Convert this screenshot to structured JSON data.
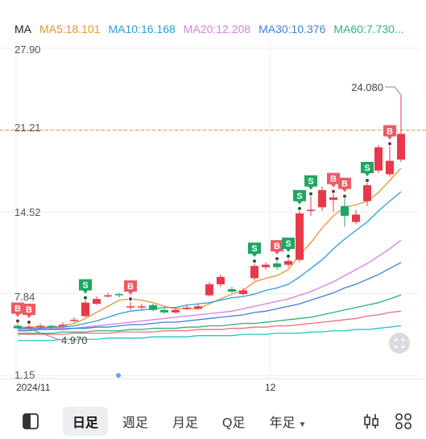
{
  "legend": {
    "ma": {
      "label": "MA",
      "color": "#222222"
    },
    "ma5": {
      "label": "MA5:18.101",
      "color": "#e8922e"
    },
    "ma10": {
      "label": "MA10:16.168",
      "color": "#2a9fd6"
    },
    "ma20": {
      "label": "MA20:12.208",
      "color": "#d67ee0"
    },
    "ma30": {
      "label": "MA30:10.376",
      "color": "#3f7fd8"
    },
    "ma60": {
      "label": "MA60:7.730...",
      "color": "#2bb27a"
    }
  },
  "y_axis": [
    "27.90",
    "21.21",
    "14.52",
    "7.84",
    "1.15"
  ],
  "x_axis": [
    "2024/11",
    "12"
  ],
  "annotations": {
    "high_label": "24.080",
    "low_label": "4.970",
    "ref_line_value": "21.21"
  },
  "markers": {
    "buy": "B",
    "sell": "S"
  },
  "toolbar": {
    "tabs": [
      "日足",
      "週足",
      "月足",
      "Q足",
      "年足"
    ],
    "active_tab": "日足"
  },
  "colors": {
    "up": "#e8394a",
    "down": "#1ea761",
    "ref_line": "#e8922e",
    "ma_extra1": "#e8707a",
    "ma_extra2": "#22c7c7"
  },
  "chart_data": {
    "type": "candlestick",
    "ylim": [
      1.15,
      27.9
    ],
    "candles": [
      {
        "o": 5.2,
        "c": 5.0,
        "h": 5.4,
        "l": 4.97
      },
      {
        "o": 5.0,
        "c": 5.1,
        "h": 5.3,
        "l": 4.97
      },
      {
        "o": 5.1,
        "c": 5.2,
        "h": 5.4,
        "l": 5.0
      },
      {
        "o": 5.2,
        "c": 5.1,
        "h": 5.3,
        "l": 5.0
      },
      {
        "o": 5.2,
        "c": 5.3,
        "h": 5.5,
        "l": 5.1
      },
      {
        "o": 5.6,
        "c": 5.7,
        "h": 5.9,
        "l": 5.5
      },
      {
        "o": 6.0,
        "c": 7.1,
        "h": 7.3,
        "l": 5.9
      },
      {
        "o": 7.0,
        "c": 7.4,
        "h": 7.6,
        "l": 6.9
      },
      {
        "o": 7.6,
        "c": 7.7,
        "h": 7.9,
        "l": 7.5
      },
      {
        "o": 7.8,
        "c": 7.7,
        "h": 7.9,
        "l": 7.5
      },
      {
        "o": 6.7,
        "c": 6.8,
        "h": 7.2,
        "l": 6.5
      },
      {
        "o": 6.7,
        "c": 6.8,
        "h": 7.0,
        "l": 6.5
      },
      {
        "o": 6.9,
        "c": 6.5,
        "h": 7.0,
        "l": 6.4
      },
      {
        "o": 6.5,
        "c": 6.3,
        "h": 6.7,
        "l": 6.2
      },
      {
        "o": 6.3,
        "c": 6.5,
        "h": 6.7,
        "l": 6.2
      },
      {
        "o": 6.6,
        "c": 6.7,
        "h": 6.9,
        "l": 6.5
      },
      {
        "o": 6.6,
        "c": 6.8,
        "h": 7.0,
        "l": 6.5
      },
      {
        "o": 7.7,
        "c": 8.6,
        "h": 8.8,
        "l": 7.6
      },
      {
        "o": 8.6,
        "c": 9.2,
        "h": 9.4,
        "l": 8.4
      },
      {
        "o": 8.2,
        "c": 8.0,
        "h": 8.4,
        "l": 7.9
      },
      {
        "o": 7.8,
        "c": 8.1,
        "h": 8.3,
        "l": 7.7
      },
      {
        "o": 9.1,
        "c": 10.1,
        "h": 10.3,
        "l": 8.9
      },
      {
        "o": 10.0,
        "c": 10.2,
        "h": 10.4,
        "l": 9.8
      },
      {
        "o": 10.3,
        "c": 10.0,
        "h": 10.5,
        "l": 9.8
      },
      {
        "o": 10.2,
        "c": 10.5,
        "h": 10.7,
        "l": 10.0
      },
      {
        "o": 10.6,
        "c": 14.4,
        "h": 14.6,
        "l": 10.4
      },
      {
        "o": 14.6,
        "c": 14.7,
        "h": 15.8,
        "l": 14.2
      },
      {
        "o": 14.9,
        "c": 16.3,
        "h": 16.6,
        "l": 14.6
      },
      {
        "o": 15.5,
        "c": 15.7,
        "h": 16.0,
        "l": 14.5
      },
      {
        "o": 15.0,
        "c": 14.2,
        "h": 15.6,
        "l": 13.3
      },
      {
        "o": 13.7,
        "c": 14.3,
        "h": 14.7,
        "l": 13.5
      },
      {
        "o": 15.4,
        "c": 16.7,
        "h": 16.9,
        "l": 15.0
      },
      {
        "o": 17.9,
        "c": 19.8,
        "h": 20.0,
        "l": 17.7
      },
      {
        "o": 17.6,
        "c": 18.7,
        "h": 19.9,
        "l": 17.4
      },
      {
        "o": 18.8,
        "c": 20.9,
        "h": 24.08,
        "l": 18.6
      }
    ],
    "signals": [
      {
        "i": 0,
        "type": "B"
      },
      {
        "i": 1,
        "type": "B"
      },
      {
        "i": 6,
        "type": "S"
      },
      {
        "i": 10,
        "type": "B"
      },
      {
        "i": 21,
        "type": "S"
      },
      {
        "i": 23,
        "type": "B"
      },
      {
        "i": 24,
        "type": "S"
      },
      {
        "i": 25,
        "type": "S"
      },
      {
        "i": 26,
        "type": "S"
      },
      {
        "i": 28,
        "type": "B"
      },
      {
        "i": 29,
        "type": "B"
      },
      {
        "i": 31,
        "type": "S"
      },
      {
        "i": 33,
        "type": "B"
      }
    ],
    "ma_lines": [
      {
        "name": "MA5",
        "color": "#e8922e",
        "values": [
          5.1,
          5.1,
          5.1,
          5.1,
          5.2,
          5.4,
          5.8,
          6.3,
          6.8,
          7.3,
          7.4,
          7.3,
          7.1,
          6.8,
          6.6,
          6.6,
          6.6,
          7.0,
          7.4,
          7.8,
          8.1,
          8.8,
          9.1,
          9.3,
          9.8,
          11.0,
          12.0,
          13.2,
          14.2,
          14.9,
          15.1,
          15.4,
          16.1,
          17.1,
          18.1
        ]
      },
      {
        "name": "MA10",
        "color": "#2a9fd6",
        "values": [
          5.0,
          5.0,
          5.0,
          5.1,
          5.1,
          5.2,
          5.4,
          5.6,
          5.9,
          6.2,
          6.4,
          6.5,
          6.6,
          6.7,
          6.7,
          6.9,
          7.0,
          7.1,
          7.3,
          7.5,
          7.6,
          7.8,
          8.1,
          8.3,
          8.6,
          9.2,
          9.9,
          10.6,
          11.5,
          12.3,
          13.0,
          13.7,
          14.6,
          15.4,
          16.17
        ]
      },
      {
        "name": "MA20",
        "color": "#d67ee0",
        "values": [
          4.9,
          4.9,
          4.9,
          5.0,
          5.0,
          5.0,
          5.1,
          5.2,
          5.3,
          5.4,
          5.5,
          5.6,
          5.7,
          5.8,
          5.9,
          6.0,
          6.1,
          6.2,
          6.3,
          6.4,
          6.6,
          6.8,
          7.0,
          7.2,
          7.4,
          7.7,
          8.0,
          8.4,
          8.8,
          9.3,
          9.8,
          10.3,
          10.9,
          11.5,
          12.21
        ]
      },
      {
        "name": "MA30",
        "color": "#3f7fd8",
        "values": [
          4.8,
          4.8,
          4.9,
          4.9,
          4.9,
          5.0,
          5.0,
          5.1,
          5.1,
          5.2,
          5.3,
          5.3,
          5.4,
          5.5,
          5.5,
          5.6,
          5.7,
          5.8,
          5.9,
          6.0,
          6.1,
          6.3,
          6.4,
          6.6,
          6.8,
          7.0,
          7.3,
          7.6,
          7.9,
          8.3,
          8.6,
          9.0,
          9.4,
          9.9,
          10.38
        ]
      },
      {
        "name": "MA60",
        "color": "#2bb27a",
        "values": [
          4.6,
          4.6,
          4.6,
          4.6,
          4.7,
          4.7,
          4.7,
          4.8,
          4.8,
          4.8,
          4.9,
          4.9,
          5.0,
          5.0,
          5.0,
          5.1,
          5.1,
          5.2,
          5.2,
          5.3,
          5.4,
          5.4,
          5.5,
          5.6,
          5.7,
          5.8,
          5.9,
          6.1,
          6.3,
          6.5,
          6.7,
          6.9,
          7.1,
          7.4,
          7.73
        ]
      },
      {
        "name": "MA120",
        "color": "#e8707a",
        "values": [
          4.5,
          4.5,
          4.5,
          4.5,
          4.5,
          4.6,
          4.6,
          4.6,
          4.6,
          4.7,
          4.7,
          4.7,
          4.7,
          4.8,
          4.8,
          4.8,
          4.9,
          4.9,
          4.9,
          5.0,
          5.0,
          5.1,
          5.1,
          5.2,
          5.2,
          5.3,
          5.4,
          5.5,
          5.6,
          5.7,
          5.8,
          6.0,
          6.1,
          6.3,
          6.4
        ]
      },
      {
        "name": "MA250",
        "color": "#22c7c7",
        "values": [
          4.0,
          4.0,
          4.0,
          4.0,
          4.1,
          4.1,
          4.1,
          4.1,
          4.2,
          4.2,
          4.2,
          4.2,
          4.3,
          4.3,
          4.3,
          4.3,
          4.4,
          4.4,
          4.4,
          4.4,
          4.5,
          4.5,
          4.5,
          4.6,
          4.6,
          4.6,
          4.7,
          4.7,
          4.8,
          4.8,
          4.9,
          4.9,
          5.0,
          5.1,
          5.2
        ]
      }
    ]
  }
}
